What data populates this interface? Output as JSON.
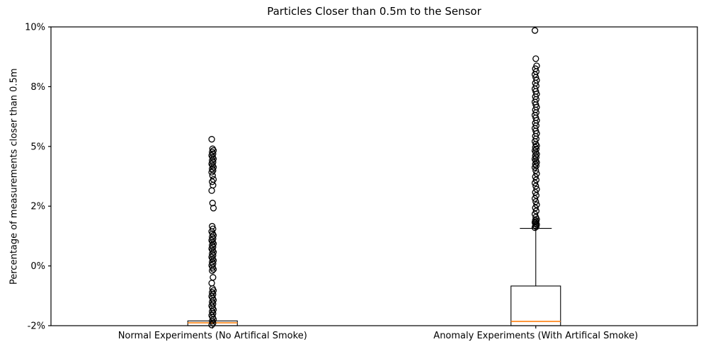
{
  "title": "Particles Closer than 0.5m to the Sensor",
  "ylabel": "Percentage of measurements closer than 0.5m",
  "colors": {
    "background": "#ffffff",
    "axis": "#000000",
    "box_edge": "#000000",
    "median": "#ff7f0e",
    "outlier_edge": "#000000"
  },
  "chart_data": {
    "type": "boxplot",
    "title": "Particles Closer than 0.5m to the Sensor",
    "xlabel": "",
    "ylabel": "Percentage of measurements closer than 0.5m",
    "ylim": [
      -2.5,
      10
    ],
    "grid": false,
    "legend": "none",
    "yticks": [
      {
        "value": 10,
        "label": "10%"
      },
      {
        "value": 7.5,
        "label": "8%"
      },
      {
        "value": 5,
        "label": "5%"
      },
      {
        "value": 2.5,
        "label": "2%"
      },
      {
        "value": 0,
        "label": "0%"
      },
      {
        "value": -2.5,
        "label": "-2%"
      }
    ],
    "categories": [
      "Normal Experiments (No Artifical Smoke)",
      "Anomaly Experiments (With Artifical Smoke)"
    ],
    "series": [
      {
        "name": "Normal Experiments (No Artifical Smoke)",
        "whisker_low": -2.5,
        "q1": -2.5,
        "median": -2.38,
        "q3": -2.3,
        "whisker_high": -2.3,
        "outliers": [
          5.3,
          4.9,
          4.83,
          4.76,
          4.69,
          4.62,
          4.55,
          4.48,
          4.41,
          4.34,
          4.27,
          4.2,
          4.13,
          4.06,
          3.99,
          3.92,
          3.78,
          3.62,
          3.52,
          3.38,
          3.15,
          2.63,
          2.42,
          1.66,
          1.55,
          1.44,
          1.35,
          1.28,
          1.21,
          1.14,
          1.07,
          1.0,
          0.93,
          0.86,
          0.79,
          0.72,
          0.65,
          0.58,
          0.51,
          0.44,
          0.37,
          0.3,
          0.23,
          0.16,
          0.09,
          0.02,
          -0.06,
          -0.14,
          -0.2,
          -0.48,
          -0.72,
          -0.95,
          -1.03,
          -1.11,
          -1.19,
          -1.27,
          -1.35,
          -1.43,
          -1.51,
          -1.59,
          -1.67,
          -1.75,
          -1.83,
          -1.91,
          -1.99,
          -2.07,
          -2.15,
          -2.23,
          -2.31,
          -2.39,
          -2.47
        ]
      },
      {
        "name": "Anomaly Experiments (With Artifical Smoke)",
        "whisker_low": -2.5,
        "q1": -2.5,
        "median": -2.32,
        "q3": -0.84,
        "whisker_high": 1.57,
        "outliers": [
          9.85,
          8.67,
          8.37,
          8.25,
          8.13,
          8.01,
          7.89,
          7.77,
          7.65,
          7.53,
          7.41,
          7.3,
          7.19,
          7.08,
          6.97,
          6.86,
          6.75,
          6.64,
          6.53,
          6.42,
          6.31,
          6.2,
          6.09,
          5.98,
          5.87,
          5.76,
          5.65,
          5.54,
          5.43,
          5.32,
          5.21,
          5.1,
          5.03,
          4.96,
          4.89,
          4.82,
          4.75,
          4.68,
          4.61,
          4.54,
          4.47,
          4.4,
          4.33,
          4.26,
          4.19,
          4.12,
          3.99,
          3.86,
          3.73,
          3.6,
          3.47,
          3.34,
          3.21,
          3.08,
          2.95,
          2.82,
          2.69,
          2.56,
          2.43,
          2.3,
          2.17,
          2.04,
          1.95,
          1.91,
          1.86,
          1.82,
          1.77,
          1.73,
          1.68,
          1.64,
          1.6
        ]
      }
    ]
  }
}
